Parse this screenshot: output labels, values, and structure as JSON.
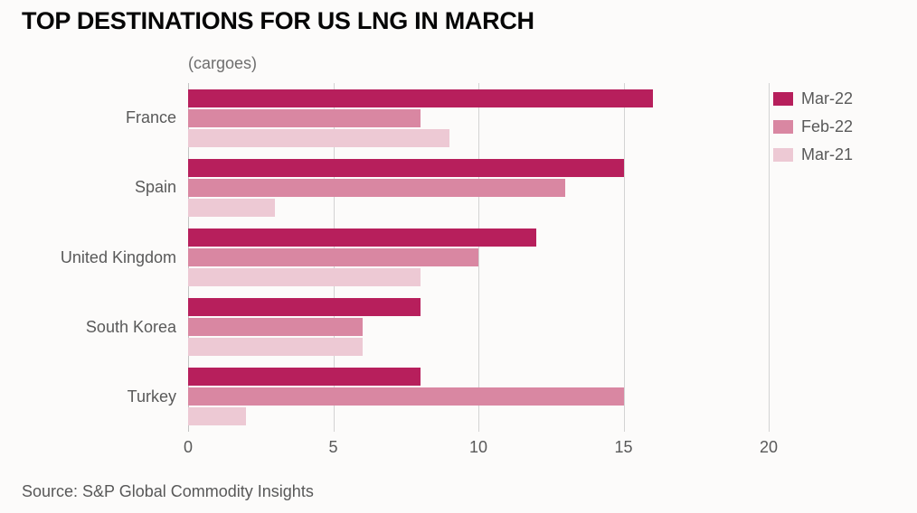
{
  "chart": {
    "title": "TOP DESTINATIONS FOR US LNG IN MARCH",
    "subtitle": "(cargoes)",
    "source": "Source: S&P Global Commodity Insights"
  },
  "chart_data": {
    "type": "bar",
    "orientation": "horizontal",
    "title": "TOP DESTINATIONS FOR US LNG IN MARCH",
    "subtitle": "(cargoes)",
    "xlabel": "",
    "ylabel": "",
    "categories": [
      "France",
      "Spain",
      "United Kingdom",
      "South Korea",
      "Turkey"
    ],
    "series": [
      {
        "name": "Mar-22",
        "color": "#b71f5c",
        "values": [
          16,
          15,
          12,
          8,
          8
        ]
      },
      {
        "name": "Feb-22",
        "color": "#d987a2",
        "values": [
          8,
          13,
          10,
          6,
          15
        ]
      },
      {
        "name": "Mar-21",
        "color": "#edc9d4",
        "values": [
          9,
          3,
          8,
          6,
          2
        ]
      }
    ],
    "xlim": [
      0,
      20
    ],
    "xticks": [
      0,
      5,
      10,
      15,
      20
    ],
    "grid": true,
    "legend_position": "top-right",
    "source": "Source: S&P Global Commodity Insights"
  },
  "colors": {
    "background": "#fcfbfa",
    "grid": "#d3d3d3",
    "axis_text": "#595959",
    "title_text": "#060606"
  }
}
